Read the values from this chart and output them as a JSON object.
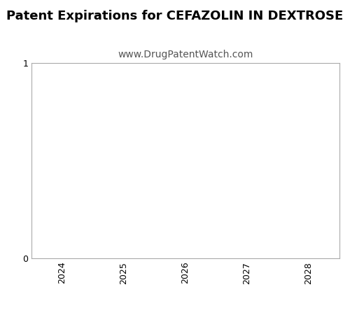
{
  "title": "Patent Expirations for CEFAZOLIN IN DEXTROSE",
  "subtitle": "www.DrugPatentWatch.com",
  "title_fontsize": 13,
  "subtitle_fontsize": 10,
  "title_fontweight": "bold",
  "xlim": [
    2023.5,
    2028.5
  ],
  "ylim": [
    0,
    1
  ],
  "xticks": [
    2024,
    2025,
    2026,
    2027,
    2028
  ],
  "yticks": [
    0,
    1
  ],
  "background_color": "#ffffff",
  "plot_bg_color": "#ffffff",
  "border_color": "#aaaaaa",
  "tick_label_color": "#000000",
  "subtitle_color": "#555555",
  "spine_linewidth": 0.8
}
